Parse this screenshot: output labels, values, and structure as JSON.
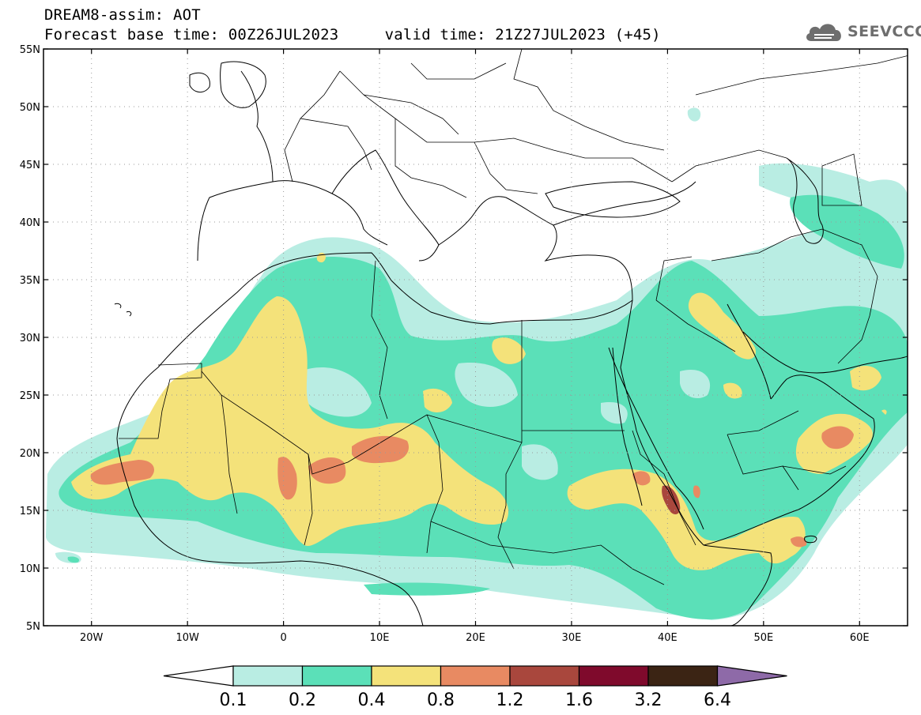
{
  "header": {
    "title_line1": "DREAM8-assim: AOT",
    "title_line2": "Forecast base time: 00Z26JUL2023     valid time: 21Z27JUL2023 (+45)",
    "logo_text": "SEEVCCC"
  },
  "map": {
    "lon_range": [
      -25,
      65
    ],
    "lat_range": [
      5,
      55
    ],
    "lat_ticks": [
      {
        "value": 55,
        "label": "55N"
      },
      {
        "value": 50,
        "label": "50N"
      },
      {
        "value": 45,
        "label": "45N"
      },
      {
        "value": 40,
        "label": "40N"
      },
      {
        "value": 35,
        "label": "35N"
      },
      {
        "value": 30,
        "label": "30N"
      },
      {
        "value": 25,
        "label": "25N"
      },
      {
        "value": 20,
        "label": "20N"
      },
      {
        "value": 15,
        "label": "15N"
      },
      {
        "value": 10,
        "label": "10N"
      },
      {
        "value": 5,
        "label": "5N"
      }
    ],
    "lon_ticks": [
      {
        "value": -20,
        "label": "20W"
      },
      {
        "value": -10,
        "label": "10W"
      },
      {
        "value": 0,
        "label": "0"
      },
      {
        "value": 10,
        "label": "10E"
      },
      {
        "value": 20,
        "label": "20E"
      },
      {
        "value": 30,
        "label": "30E"
      },
      {
        "value": 40,
        "label": "40E"
      },
      {
        "value": 50,
        "label": "50E"
      },
      {
        "value": 60,
        "label": "60E"
      }
    ],
    "grid": "dotted"
  },
  "colorbar": {
    "labels": [
      "0.1",
      "0.2",
      "0.4",
      "0.8",
      "1.2",
      "1.6",
      "3.2",
      "6.4"
    ],
    "colors": [
      "#ffffff",
      "#b9ede3",
      "#5be0b8",
      "#f4e27a",
      "#e88a62",
      "#a9473d",
      "#7f0a2c",
      "#3b2414",
      "#8e6aa8"
    ]
  }
}
